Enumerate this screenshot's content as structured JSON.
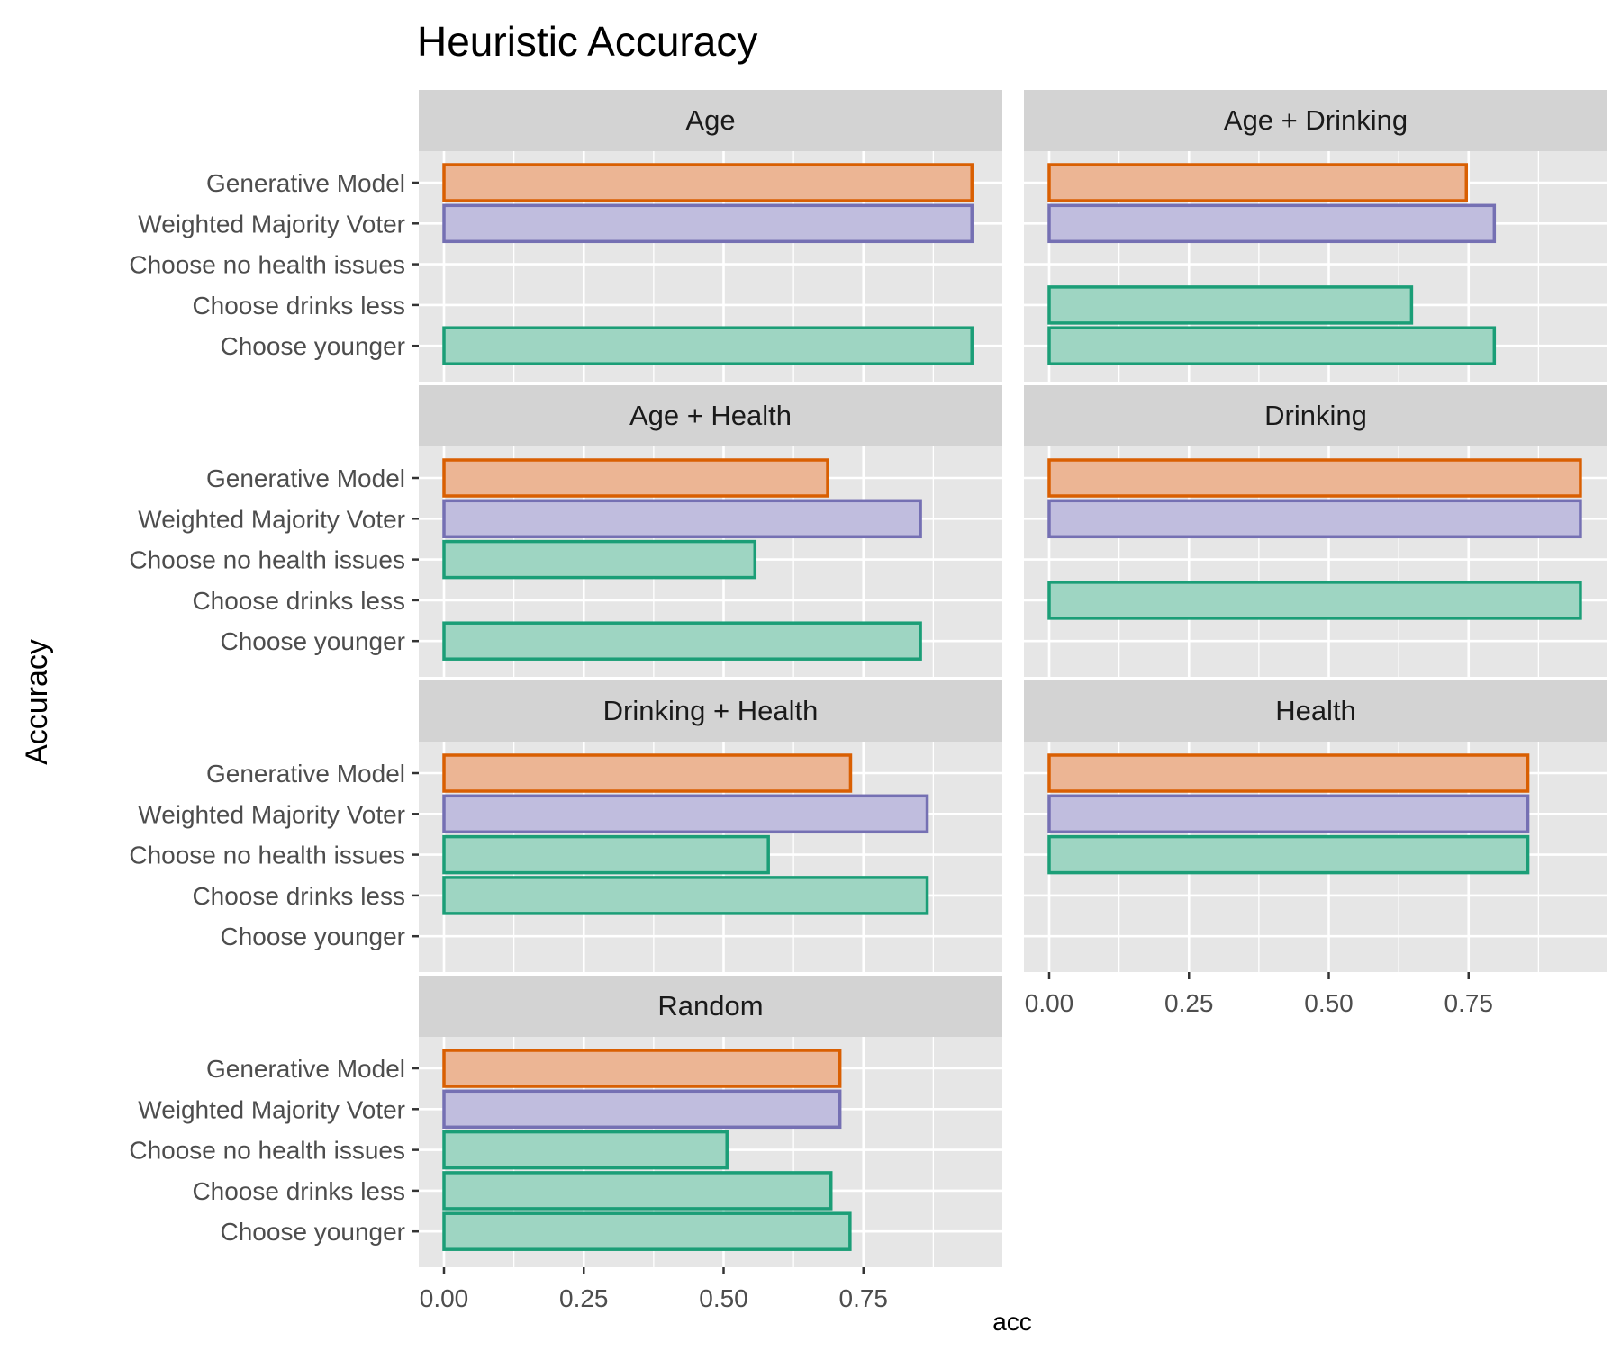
{
  "chart_data": {
    "type": "bar",
    "orientation": "horizontal",
    "title": "Heuristic Accuracy",
    "xlabel": "acc",
    "ylabel": "Accuracy",
    "xlim": [
      0,
      1
    ],
    "x_ticks": [
      "0.00",
      "0.25",
      "0.50",
      "0.75"
    ],
    "x_tick_values": [
      0,
      0.25,
      0.5,
      0.75
    ],
    "categories": [
      "Generative Model",
      "Weighted Majority Voter",
      "Choose no health issues",
      "Choose drinks less",
      "Choose younger"
    ],
    "grid": true,
    "legend": "none",
    "colors": {
      "Generative Model": {
        "fill": "#ecb594",
        "stroke": "#d95f02"
      },
      "Weighted Majority Voter": {
        "fill": "#c0bdde",
        "stroke": "#7570b3"
      },
      "heuristic": {
        "fill": "#9ed5c2",
        "stroke": "#1b9e77"
      },
      "panel_bg": "#e6e6e6",
      "strip_bg": "#d3d3d3",
      "gridline": "#ffffff"
    },
    "panels": [
      {
        "name": "Age",
        "values": [
          0.944,
          0.944,
          null,
          null,
          0.944
        ]
      },
      {
        "name": "Age + Drinking",
        "values": [
          0.746,
          0.796,
          null,
          0.648,
          0.796
        ]
      },
      {
        "name": "Age + Health",
        "values": [
          0.686,
          0.852,
          0.556,
          null,
          0.852
        ]
      },
      {
        "name": "Drinking",
        "values": [
          0.95,
          0.95,
          null,
          0.95,
          null
        ]
      },
      {
        "name": "Drinking + Health",
        "values": [
          0.727,
          0.864,
          0.58,
          0.864,
          null
        ]
      },
      {
        "name": "Health",
        "values": [
          0.856,
          0.856,
          0.856,
          null,
          null
        ]
      },
      {
        "name": "Random",
        "values": [
          0.708,
          0.708,
          0.506,
          0.692,
          0.726
        ]
      }
    ]
  }
}
